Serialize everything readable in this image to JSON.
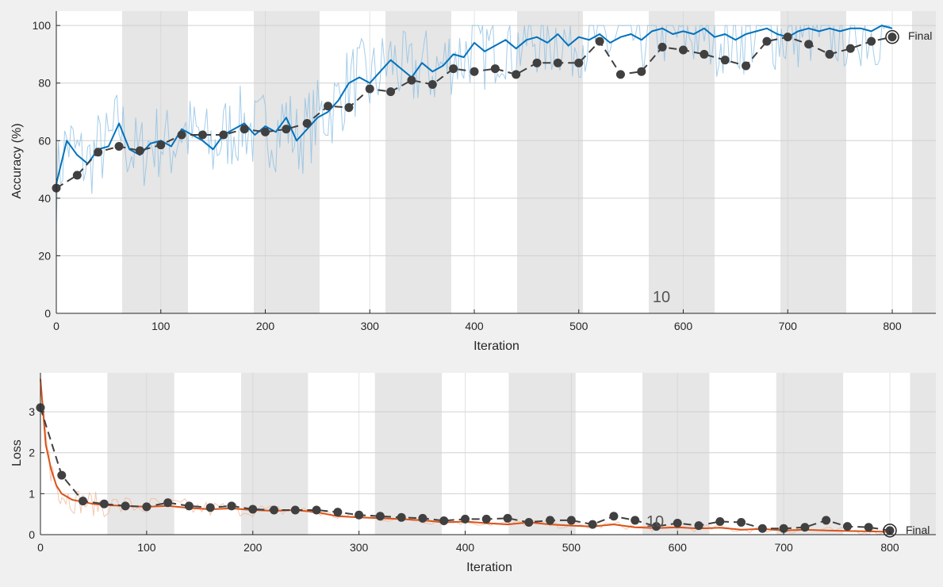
{
  "chart_data": [
    {
      "type": "line",
      "ylabel": "Accuracy (%)",
      "xlabel": "Iteration",
      "xlim": [
        0,
        800
      ],
      "ylim": [
        0,
        100
      ],
      "xticks": [
        0,
        100,
        200,
        300,
        400,
        500,
        600,
        700,
        800
      ],
      "yticks": [
        0,
        20,
        40,
        60,
        80,
        100
      ],
      "grid": true,
      "epoch_bands": {
        "width_iterations": 63,
        "label": "10"
      },
      "final_label": "Final",
      "colors": {
        "training": "#0072bd",
        "training_raw": "#8fc1e3",
        "validation": "#404040",
        "band": "#e6e6e6"
      },
      "series": [
        {
          "role": "training-smoothed",
          "x": [
            0,
            10,
            20,
            30,
            40,
            50,
            60,
            70,
            80,
            90,
            100,
            110,
            120,
            130,
            140,
            150,
            160,
            170,
            180,
            190,
            200,
            210,
            220,
            230,
            240,
            250,
            260,
            270,
            280,
            290,
            300,
            310,
            320,
            330,
            340,
            350,
            360,
            370,
            380,
            390,
            400,
            410,
            420,
            430,
            440,
            450,
            460,
            470,
            480,
            490,
            500,
            510,
            520,
            530,
            540,
            550,
            560,
            570,
            580,
            590,
            600,
            610,
            620,
            630,
            640,
            650,
            660,
            670,
            680,
            690,
            700,
            710,
            720,
            730,
            740,
            750,
            760,
            770,
            780,
            790,
            800
          ],
          "y": [
            45,
            60,
            55,
            52,
            57,
            58,
            66,
            57,
            55,
            59,
            60,
            58,
            64,
            62,
            60,
            57,
            62,
            64,
            66,
            62,
            65,
            63,
            68,
            60,
            64,
            68,
            70,
            74,
            80,
            82,
            80,
            84,
            88,
            85,
            82,
            87,
            84,
            86,
            90,
            89,
            94,
            91,
            93,
            95,
            92,
            95,
            96,
            94,
            97,
            93,
            96,
            95,
            97,
            94,
            96,
            97,
            95,
            98,
            99,
            97,
            98,
            97,
            99,
            96,
            97,
            95,
            97,
            98,
            99,
            97,
            96,
            98,
            99,
            98,
            99,
            98,
            99,
            99,
            98,
            100,
            99
          ]
        },
        {
          "role": "validation",
          "x": [
            0,
            20,
            40,
            60,
            80,
            100,
            120,
            140,
            160,
            180,
            200,
            220,
            240,
            260,
            280,
            300,
            320,
            340,
            360,
            380,
            400,
            420,
            440,
            460,
            480,
            500,
            520,
            540,
            560,
            580,
            600,
            620,
            640,
            660,
            680,
            700,
            720,
            740,
            760,
            780,
            800
          ],
          "y": [
            43.5,
            48,
            56,
            58,
            56.5,
            58.5,
            62,
            62,
            62,
            64,
            63,
            64,
            66,
            72,
            71.5,
            78,
            77,
            81,
            79.5,
            85,
            84,
            85,
            83,
            87,
            87,
            87,
            94.5,
            83,
            84,
            92.5,
            91.5,
            90,
            88,
            86,
            94.5,
            96,
            93.5,
            90,
            92,
            94.5,
            96
          ]
        }
      ]
    },
    {
      "type": "line",
      "ylabel": "Loss",
      "xlabel": "Iteration",
      "xlim": [
        0,
        800
      ],
      "ylim": [
        0,
        4
      ],
      "xticks": [
        0,
        100,
        200,
        300,
        400,
        500,
        600,
        700,
        800
      ],
      "yticks": [
        0,
        1,
        2,
        3
      ],
      "grid": true,
      "epoch_bands": {
        "width_iterations": 63,
        "label": "10"
      },
      "final_label": "Final",
      "colors": {
        "training": "#d95319",
        "training_raw": "#f3b89c",
        "validation": "#404040",
        "band": "#e6e6e6"
      },
      "series": [
        {
          "role": "training-smoothed",
          "x": [
            0,
            5,
            10,
            15,
            20,
            30,
            40,
            50,
            60,
            80,
            100,
            120,
            140,
            160,
            180,
            200,
            220,
            240,
            260,
            280,
            300,
            320,
            340,
            360,
            380,
            400,
            420,
            440,
            460,
            480,
            500,
            520,
            540,
            560,
            580,
            600,
            620,
            640,
            660,
            680,
            700,
            720,
            740,
            760,
            780,
            800
          ],
          "y": [
            3.8,
            2.2,
            1.6,
            1.2,
            1.0,
            0.85,
            0.8,
            0.75,
            0.72,
            0.7,
            0.68,
            0.7,
            0.65,
            0.62,
            0.64,
            0.6,
            0.58,
            0.6,
            0.55,
            0.45,
            0.42,
            0.4,
            0.38,
            0.35,
            0.3,
            0.32,
            0.28,
            0.25,
            0.3,
            0.25,
            0.22,
            0.2,
            0.25,
            0.18,
            0.16,
            0.18,
            0.15,
            0.17,
            0.12,
            0.14,
            0.1,
            0.12,
            0.1,
            0.09,
            0.08,
            0.07
          ]
        },
        {
          "role": "validation",
          "x": [
            0,
            20,
            40,
            60,
            80,
            100,
            120,
            140,
            160,
            180,
            200,
            220,
            240,
            260,
            280,
            300,
            320,
            340,
            360,
            380,
            400,
            420,
            440,
            460,
            480,
            500,
            520,
            540,
            560,
            580,
            600,
            620,
            640,
            660,
            680,
            700,
            720,
            740,
            760,
            780,
            800
          ],
          "y": [
            3.1,
            1.45,
            0.82,
            0.75,
            0.7,
            0.68,
            0.78,
            0.7,
            0.66,
            0.7,
            0.62,
            0.6,
            0.6,
            0.6,
            0.55,
            0.48,
            0.45,
            0.42,
            0.4,
            0.34,
            0.38,
            0.38,
            0.4,
            0.3,
            0.35,
            0.35,
            0.25,
            0.45,
            0.35,
            0.2,
            0.28,
            0.22,
            0.32,
            0.3,
            0.15,
            0.15,
            0.18,
            0.35,
            0.2,
            0.18,
            0.1
          ]
        }
      ]
    }
  ]
}
